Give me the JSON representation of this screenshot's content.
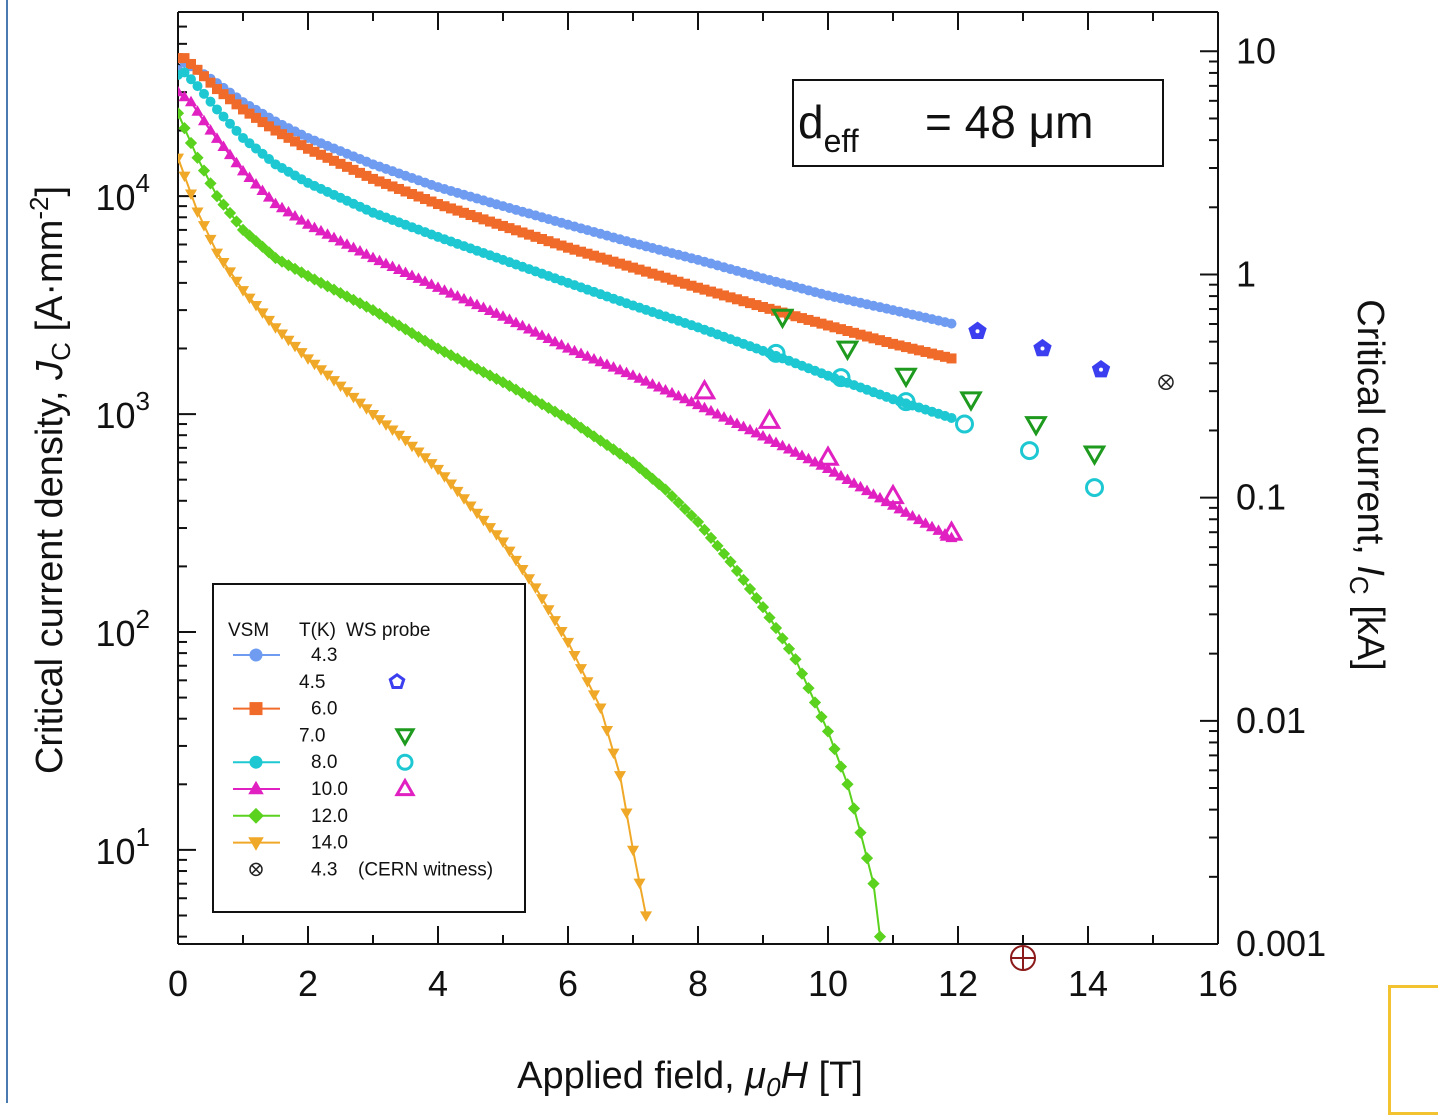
{
  "chart_data": {
    "type": "scatter",
    "annotation": {
      "text_main": "d",
      "text_sub": "eff",
      "text_rest": "=  48 μm"
    },
    "xlabel": {
      "prefix": "Applied field, ",
      "mu": "μ",
      "sub": "0",
      "var": "H",
      "unit": " [T]"
    },
    "ylabel_left": {
      "prefix": "Critical current density, ",
      "var": "J",
      "sub": "C",
      "unit": " [A·mm",
      "sup": "-2",
      "close": "]"
    },
    "ylabel_right": {
      "prefix": "Critical current, ",
      "var": "I",
      "sub": "C",
      "unit": " [kA]"
    },
    "xlim": [
      0,
      16
    ],
    "ylim_left": [
      3.7,
      70000
    ],
    "ylim_right": [
      0.001,
      15
    ],
    "yscale": "log",
    "x_ticks": [
      "0",
      "2",
      "4",
      "6",
      "8",
      "10",
      "12",
      "14",
      "16"
    ],
    "y_left_ticks": [
      {
        "base": "10",
        "exp": "1",
        "value": 10
      },
      {
        "base": "10",
        "exp": "2",
        "value": 100
      },
      {
        "base": "10",
        "exp": "3",
        "value": 1000
      },
      {
        "base": "10",
        "exp": "4",
        "value": 10000
      }
    ],
    "y_right_ticks": [
      {
        "label": "0.001",
        "value": 0.001
      },
      {
        "label": "0.01",
        "value": 0.01
      },
      {
        "label": "0.1",
        "value": 0.1
      },
      {
        "label": "1",
        "value": 1
      },
      {
        "label": "10",
        "value": 10
      }
    ],
    "legend": {
      "header": {
        "vsm": "VSM",
        "tk": "T(K)",
        "ws": "WS probe"
      },
      "entries": [
        {
          "temp": "4.3",
          "method": "VSM",
          "marker": "circle",
          "color": "#6f9cf0"
        },
        {
          "temp": "4.5",
          "method": "WS",
          "marker": "pentagon",
          "color": "#3b3ff0"
        },
        {
          "temp": "6.0",
          "method": "VSM",
          "marker": "square",
          "color": "#f06a2a"
        },
        {
          "temp": "7.0",
          "method": "WS",
          "marker": "triangle-down",
          "color": "#1e9a1e"
        },
        {
          "temp": "8.0",
          "method": "both",
          "marker": "circle",
          "color": "#1ec8d2"
        },
        {
          "temp": "10.0",
          "method": "both",
          "marker": "triangle-up",
          "color": "#e020c0"
        },
        {
          "temp": "12.0",
          "method": "VSM",
          "marker": "diamond",
          "color": "#5ad21e"
        },
        {
          "temp": "14.0",
          "method": "VSM",
          "marker": "triangle-down",
          "color": "#f0a828"
        },
        {
          "temp": "4.3",
          "method": "witness",
          "marker": "otimes",
          "color": "#222222",
          "note": "(CERN witness)"
        }
      ]
    },
    "series": [
      {
        "temp": "4.3",
        "kind": "vsm",
        "color": "#6f9cf0",
        "marker": "circle",
        "x": [
          0,
          0.1,
          0.3,
          0.6,
          1,
          1.5,
          2,
          3,
          4,
          5,
          6,
          7,
          8,
          9,
          10,
          11,
          11.9
        ],
        "y": [
          38000,
          41000,
          38000,
          33000,
          27000,
          22000,
          18500,
          14000,
          11000,
          9000,
          7400,
          6100,
          5100,
          4200,
          3500,
          3000,
          2600
        ]
      },
      {
        "temp": "6.0",
        "kind": "vsm",
        "color": "#f06a2a",
        "marker": "square",
        "x": [
          0,
          0.1,
          0.3,
          0.6,
          1,
          1.5,
          2,
          3,
          4,
          5,
          6,
          7,
          8,
          9,
          10,
          11,
          11.9
        ],
        "y": [
          43000,
          43000,
          38000,
          31000,
          25000,
          20000,
          16500,
          12000,
          9200,
          7300,
          5800,
          4700,
          3800,
          3100,
          2550,
          2100,
          1800
        ]
      },
      {
        "temp": "8.0",
        "kind": "vsm",
        "color": "#1ec8d2",
        "marker": "circle",
        "x": [
          0,
          0.1,
          0.3,
          0.6,
          1,
          1.5,
          2,
          3,
          4,
          5,
          6,
          7,
          8,
          9,
          10,
          11,
          11.9
        ],
        "y": [
          36000,
          37000,
          32000,
          25000,
          18500,
          14000,
          11500,
          8400,
          6500,
          5100,
          4000,
          3150,
          2500,
          1950,
          1500,
          1170,
          960
        ]
      },
      {
        "temp": "10.0",
        "kind": "vsm",
        "color": "#e020c0",
        "marker": "triangle-up",
        "x": [
          0,
          0.2,
          0.5,
          1,
          1.5,
          2,
          3,
          4,
          5,
          6,
          7,
          8,
          9,
          10,
          11,
          11.9
        ],
        "y": [
          30000,
          27000,
          20000,
          13000,
          9200,
          7400,
          5200,
          3800,
          2800,
          2000,
          1500,
          1100,
          790,
          560,
          380,
          270
        ]
      },
      {
        "temp": "12.0",
        "kind": "vsm",
        "color": "#5ad21e",
        "marker": "diamond",
        "x": [
          0,
          0.3,
          0.6,
          1,
          1.5,
          2,
          3,
          4,
          5,
          6,
          7,
          7.5,
          8,
          8.5,
          9,
          9.5,
          10,
          10.3,
          10.5,
          10.7,
          10.8
        ],
        "y": [
          24000,
          15000,
          10000,
          7000,
          5200,
          4300,
          3000,
          2000,
          1400,
          950,
          600,
          450,
          320,
          210,
          130,
          75,
          35,
          20,
          12,
          7,
          4
        ]
      },
      {
        "temp": "14.0",
        "kind": "vsm",
        "color": "#f0a828",
        "marker": "triangle-down",
        "x": [
          0,
          0.3,
          0.6,
          1,
          1.5,
          2,
          2.5,
          3,
          3.5,
          4,
          4.5,
          5,
          5.5,
          6,
          6.5,
          6.8,
          7,
          7.2
        ],
        "y": [
          15000,
          8500,
          5500,
          3700,
          2500,
          1800,
          1350,
          1000,
          760,
          560,
          380,
          260,
          160,
          90,
          45,
          22,
          10,
          5
        ]
      },
      {
        "temp": "4.5",
        "kind": "ws",
        "color": "#3b3ff0",
        "marker": "pentagon",
        "x": [
          12.3,
          13.3,
          14.2
        ],
        "y": [
          2400,
          2000,
          1600
        ]
      },
      {
        "temp": "7.0",
        "kind": "ws",
        "color": "#1e9a1e",
        "marker": "triangle-down",
        "x": [
          9.3,
          10.3,
          11.2,
          12.2,
          13.2,
          14.1
        ],
        "y": [
          2800,
          2000,
          1500,
          1170,
          900,
          660
        ]
      },
      {
        "temp": "8.0",
        "kind": "ws",
        "color": "#1ec8d2",
        "marker": "circle",
        "x": [
          9.2,
          10.2,
          11.2,
          12.1,
          13.1,
          14.1
        ],
        "y": [
          1900,
          1470,
          1140,
          900,
          680,
          460
        ]
      },
      {
        "temp": "10.0",
        "kind": "ws",
        "color": "#e020c0",
        "marker": "triangle-up",
        "x": [
          8.1,
          9.1,
          10.0,
          11.0,
          11.9
        ],
        "y": [
          1270,
          930,
          630,
          420,
          285
        ]
      },
      {
        "temp": "4.3",
        "kind": "witness",
        "color": "#222222",
        "marker": "otimes",
        "x": [
          15.2
        ],
        "y": [
          1400
        ]
      }
    ]
  }
}
